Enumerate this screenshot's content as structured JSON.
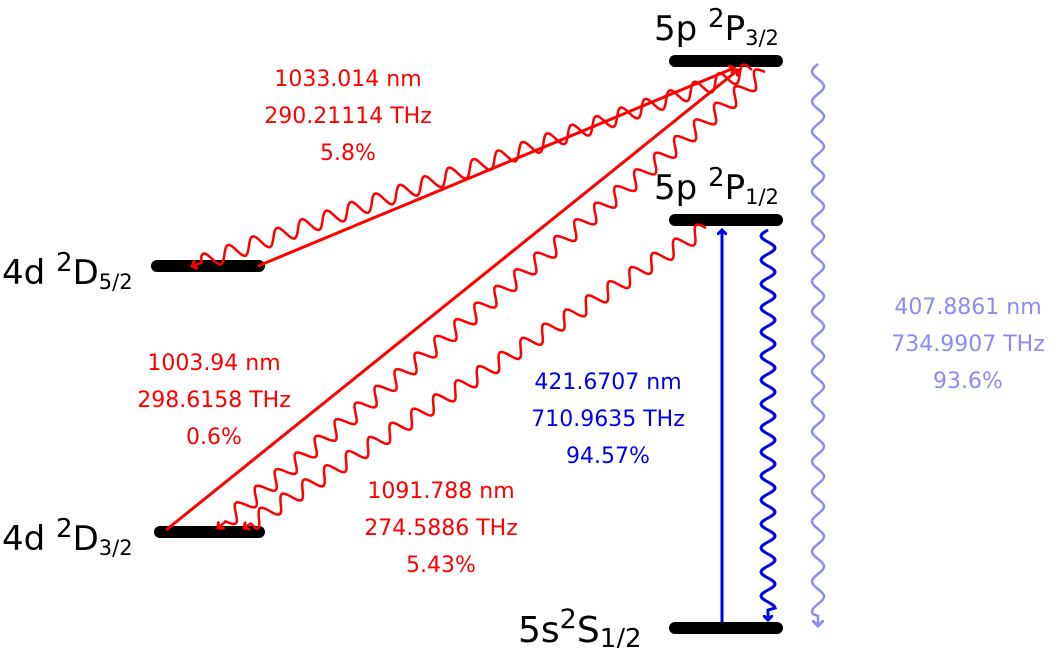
{
  "colors": {
    "red": "#ff0000",
    "blue": "#0000ee",
    "lightblue": "#8c8cf2",
    "black": "#000000"
  },
  "levels": {
    "p32": {
      "main": "5p ",
      "sup": "2",
      "letter": "P",
      "sub": "3/2"
    },
    "p12": {
      "main": "5p ",
      "sup": "2",
      "letter": "P",
      "sub": "1/2"
    },
    "d52": {
      "main": "4d ",
      "sup": "2",
      "letter": "D",
      "sub": "5/2"
    },
    "d32": {
      "main": "4d ",
      "sup": "2",
      "letter": "D",
      "sub": "3/2"
    },
    "s12": {
      "main": "5s",
      "sup": "2",
      "letter": "S",
      "sub": "1/2"
    }
  },
  "transitions": {
    "p32_d52": {
      "wavelength": "1033.014 nm",
      "frequency": "290.21114 THz",
      "branching": "5.8%"
    },
    "p32_d32": {
      "wavelength": "1003.94 nm",
      "frequency": "298.6158 THz",
      "branching": "0.6%"
    },
    "p12_d32": {
      "wavelength": "1091.788 nm",
      "frequency": "274.5886 THz",
      "branching": "5.43%"
    },
    "p12_s12": {
      "wavelength": "421.6707 nm",
      "frequency": "710.9635 THz",
      "branching": "94.57%"
    },
    "p32_s12": {
      "wavelength": "407.8861 nm",
      "frequency": "734.9907 THz",
      "branching": "93.6%"
    }
  }
}
